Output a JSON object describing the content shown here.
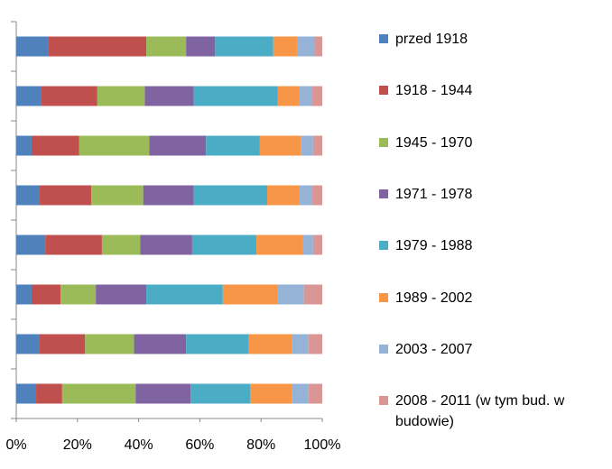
{
  "chart_data": {
    "type": "stacked-bar-horizontal",
    "categories": [
      null,
      null,
      null,
      null,
      null,
      null,
      null,
      null
    ],
    "series": [
      {
        "name": "przed 1918",
        "color": "#4f81bd",
        "values": [
          10.5,
          8,
          5,
          7.5,
          9.5,
          5,
          7.5,
          6.5
        ]
      },
      {
        "name": "1918 - 1944",
        "color": "#c0504d",
        "values": [
          32,
          18.5,
          15.5,
          17,
          18.5,
          9.5,
          15,
          8.5
        ]
      },
      {
        "name": "1945 - 1970",
        "color": "#9bbb59",
        "values": [
          13,
          15.5,
          23,
          17,
          12.5,
          11.5,
          16,
          24
        ]
      },
      {
        "name": "1971 - 1978",
        "color": "#8064a2",
        "values": [
          9.5,
          16,
          18.5,
          16.5,
          17,
          16.5,
          17,
          18
        ]
      },
      {
        "name": "1979 - 1988",
        "color": "#4bacc6",
        "values": [
          19,
          27.5,
          17.5,
          24,
          21,
          25,
          20.5,
          19.5
        ]
      },
      {
        "name": "1989 - 2002",
        "color": "#f79646",
        "values": [
          8,
          7,
          13.5,
          10.5,
          15,
          18,
          14,
          13.5
        ]
      },
      {
        "name": "2003 - 2007",
        "color": "#95b3d7",
        "values": [
          5.5,
          4,
          4,
          4,
          3.5,
          8.5,
          5.5,
          5.5
        ]
      },
      {
        "name": "2008 - 2011 (w tym bud. w budowie)",
        "color": "#d99694",
        "values": [
          2.5,
          3.5,
          3,
          3.5,
          3,
          6,
          4.5,
          4.5
        ]
      }
    ],
    "xlim": [
      0,
      100
    ],
    "xticks": [
      {
        "value": 0,
        "label": "0%"
      },
      {
        "value": 20,
        "label": "20%"
      },
      {
        "value": 40,
        "label": "40%"
      },
      {
        "value": 60,
        "label": "60%"
      },
      {
        "value": 80,
        "label": "80%"
      },
      {
        "value": 100,
        "label": "100%"
      }
    ],
    "legend": "right"
  }
}
